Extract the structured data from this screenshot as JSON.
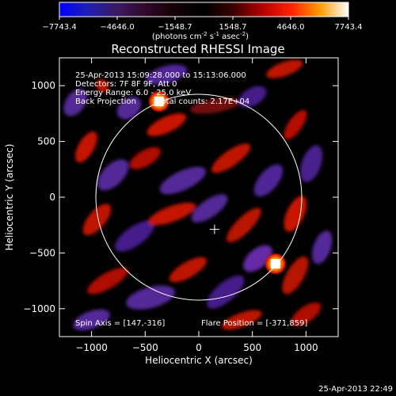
{
  "chart_data": {
    "type": "heatmap",
    "title": "Reconstructed RHESSI Image",
    "colorbar": {
      "ticks": [
        "-7743.4",
        "-4646.0",
        "-1548.7",
        "1548.7",
        "4646.0",
        "7743.4"
      ],
      "tick_values": [
        -7743.4,
        -4646.0,
        -1548.7,
        1548.7,
        4646.0,
        7743.4
      ],
      "range": [
        -7743.4,
        7743.4
      ],
      "colors": [
        "#0000ff",
        "#2020b0",
        "#3a1a60",
        "#300828",
        "#140006",
        "#000000",
        "#3a0000",
        "#b00000",
        "#ff2000",
        "#ff9a00",
        "#ffffff"
      ]
    },
    "colorbar_units": {
      "prefix": "(photons cm",
      "exp1": "-2",
      "mid1": " s",
      "exp2": "-1",
      "mid2": " asec",
      "exp3": "-2",
      "suffix": ")"
    },
    "xlabel": "Heliocentric X (arcsec)",
    "ylabel": "Heliocentric Y (arcsec)",
    "xlim": [
      -1300,
      1300
    ],
    "ylim": [
      -1250,
      1250
    ],
    "xticks": [
      -1000,
      -500,
      0,
      500,
      1000
    ],
    "yticks": [
      -1000,
      -500,
      0,
      500,
      1000
    ],
    "xtick_labels": [
      "−1000",
      "−500",
      "0",
      "500",
      "1000"
    ],
    "ytick_labels": [
      "−1000",
      "−500",
      "0",
      "500",
      "1000"
    ],
    "solar_limb_radius": 960,
    "map_center": [
      147,
      -288
    ],
    "sources": [
      {
        "x": -371,
        "y": 859,
        "intensity": 7743.4
      },
      {
        "x": 715,
        "y": -597,
        "intensity": 7200
      }
    ],
    "annotations": {
      "time_range": "25-Apr-2013 15:09:28.000 to 15:13:06.000",
      "detectors": "Detectors: 7F 8F 9F, Att 0",
      "energy_range": "Energy Range: 6.0 - 25.0 keV",
      "method": "Back Projection",
      "total_counts": "Total counts: 2.17E+04",
      "spin_axis": "Spin Axis = [147,-316]",
      "flare_position": "Flare Position = [-371,859]"
    },
    "timestamp": "25-Apr-2013 22:49"
  }
}
